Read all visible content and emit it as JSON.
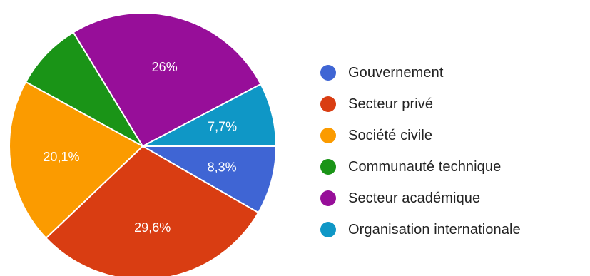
{
  "chart_data": {
    "type": "pie",
    "title": "",
    "slices": [
      {
        "name": "Gouvernement",
        "value": 8.3,
        "label": "8,3%",
        "color": "#3f65d4"
      },
      {
        "name": "Secteur privé",
        "value": 29.6,
        "label": "29,6%",
        "color": "#d93d12"
      },
      {
        "name": "Société civile",
        "value": 20.1,
        "label": "20,1%",
        "color": "#fb9b00"
      },
      {
        "name": "Communauté technique",
        "value": 8.3,
        "label": "",
        "color": "#1a9417"
      },
      {
        "name": "Secteur académique",
        "value": 26.0,
        "label": "26%",
        "color": "#970e99"
      },
      {
        "name": "Organisation internationale",
        "value": 7.7,
        "label": "7,7%",
        "color": "#0f97c6"
      }
    ],
    "start_angle": "3 o'clock",
    "direction": "clockwise",
    "legend_position": "right"
  }
}
